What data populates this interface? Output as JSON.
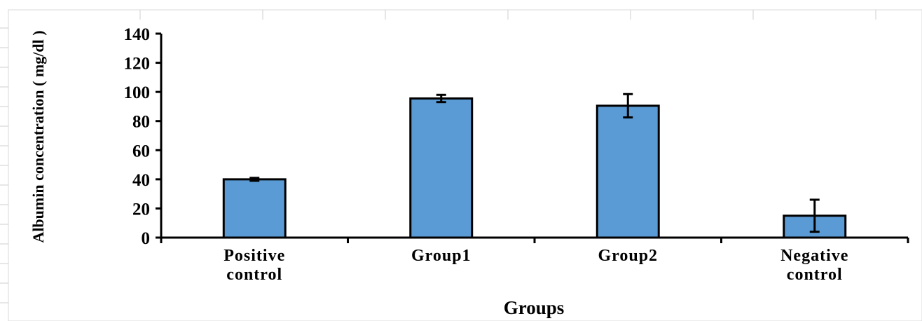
{
  "chart_data": {
    "type": "bar",
    "title": "",
    "xlabel": "Groups",
    "ylabel": "Albumin concentration ( mg/dl )",
    "ylim": [
      0,
      140
    ],
    "yticks": [
      0,
      20,
      40,
      60,
      80,
      100,
      120,
      140
    ],
    "categories": [
      [
        "Positive",
        "control"
      ],
      [
        "Group1"
      ],
      [
        "Group2"
      ],
      [
        "Negative",
        "control"
      ]
    ],
    "values": [
      40,
      95.5,
      90.5,
      15
    ],
    "errors": [
      1,
      2.5,
      8,
      11
    ],
    "bar_color": "#5b9bd5",
    "grid": false,
    "legend": "none"
  }
}
